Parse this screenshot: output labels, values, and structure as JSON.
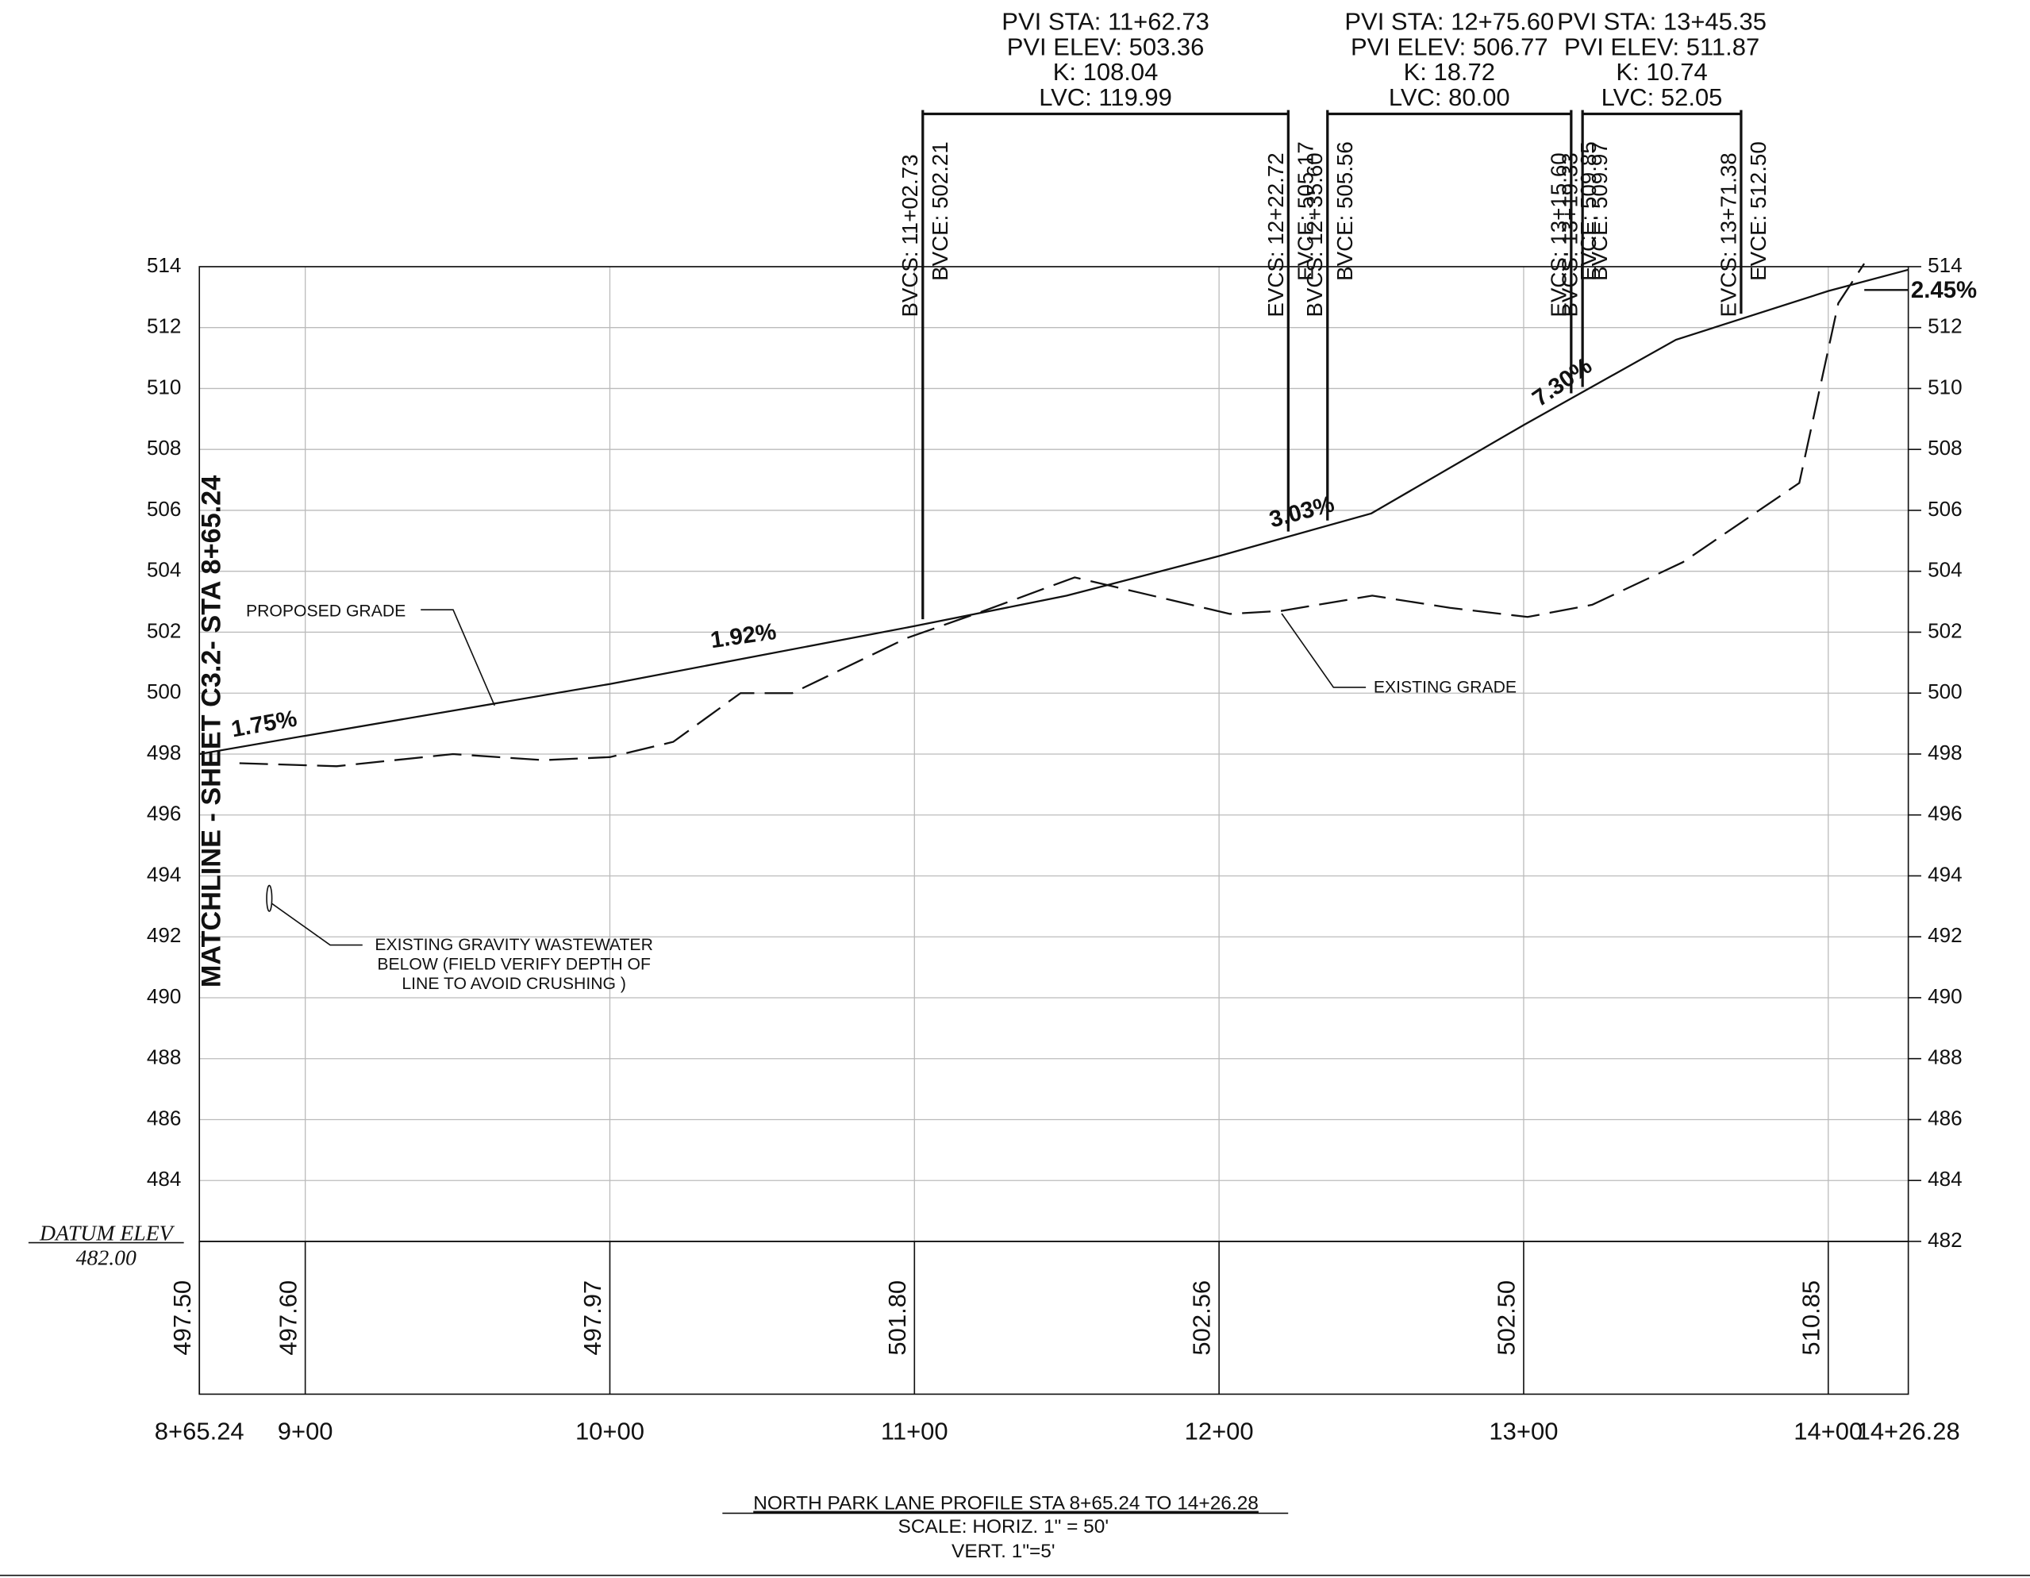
{
  "chart_data": {
    "type": "line",
    "title": "NORTH PARK LANE PROFILE STA 8+65.24 TO 14+26.28",
    "subtitle": [
      "SCALE: HORIZ. 1\" = 50'",
      "VERT. 1\"=5'"
    ],
    "matchline": "MATCHLINE - SHEET C3.2- STA 8+65.24",
    "datum": {
      "label": "DATUM  ELEV",
      "value": "482.00"
    },
    "xlim": [
      865.24,
      1426.28
    ],
    "xticks": [
      {
        "value": 865.24,
        "label": "8+65.24"
      },
      {
        "value": 900,
        "label": "9+00"
      },
      {
        "value": 1000,
        "label": "10+00"
      },
      {
        "value": 1100,
        "label": "11+00"
      },
      {
        "value": 1200,
        "label": "12+00"
      },
      {
        "value": 1300,
        "label": "13+00"
      },
      {
        "value": 1400,
        "label": "14+00"
      },
      {
        "value": 1426.28,
        "label": "14+26.28"
      }
    ],
    "ylim": [
      482,
      514
    ],
    "yticks": [
      482,
      484,
      486,
      488,
      490,
      492,
      494,
      496,
      498,
      500,
      502,
      504,
      506,
      508,
      510,
      512,
      514
    ],
    "grid": true,
    "series": [
      {
        "name": "PROPOSED GRADE",
        "color": "#111111",
        "dash": false,
        "x": [
          865.24,
          900,
          1000,
          1100,
          1150,
          1200,
          1250,
          1300,
          1350,
          1400,
          1426.28
        ],
        "values": [
          498.0,
          498.6,
          500.3,
          502.2,
          503.2,
          504.5,
          505.9,
          508.8,
          511.6,
          513.2,
          513.9
        ]
      },
      {
        "name": "EXISTING GRADE",
        "color": "#111111",
        "dash": true,
        "x": [
          878.4,
          910.3,
          948.5,
          978.3,
          1000,
          1020.8,
          1042.9,
          1059.9,
          1097.3,
          1122.8,
          1152.6,
          1173.8,
          1203.6,
          1220.5,
          1250.3,
          1275.8,
          1301.3,
          1322.5,
          1352.3,
          1390.5,
          1403.3,
          1411.8
        ],
        "values": [
          497.7,
          497.6,
          498.0,
          497.8,
          497.9,
          498.4,
          500.0,
          500.0,
          501.8,
          502.7,
          503.8,
          503.3,
          502.6,
          502.7,
          503.2,
          502.8,
          502.5,
          502.9,
          504.3,
          506.9,
          512.8,
          514.1
        ]
      }
    ],
    "grade_labels": [
      "1.75%",
      "1.92%",
      "3.03%",
      "7.30%",
      "2.45%"
    ],
    "annotations": [
      "PROPOSED GRADE",
      "EXISTING GRADE",
      "EXISTING GRAVITY WASTEWATER",
      "BELOW (FIELD VERIFY DEPTH OF",
      "LINE TO AVOID CRUSHING )"
    ],
    "vertical_curves": [
      {
        "pvi": [
          "PVI STA:  11+62.73",
          "PVI ELEV:  503.36",
          "K:  108.04",
          "LVC:  119.99"
        ],
        "bvc": {
          "x": 1102.73,
          "station": "BVCS:  11+02.73",
          "elev": "BVCE:  502.21"
        },
        "evc": {
          "x": 1222.72,
          "station": "EVCS:  12+22.72",
          "elev": "EVCE:  505.17"
        }
      },
      {
        "pvi": [
          "PVI STA:  12+75.60",
          "PVI ELEV:  506.77",
          "K:  18.72",
          "LVC:  80.00"
        ],
        "bvc": {
          "x": 1235.6,
          "station": "BVCS:  12+35.60",
          "elev": "BVCE:  505.56"
        },
        "evc": {
          "x": 1315.6,
          "station": "EVCS:  13+15.60",
          "elev": "EVCE:  509.85"
        }
      },
      {
        "pvi": [
          "PVI STA:  13+45.35",
          "PVI ELEV:  511.87",
          "K:  10.74",
          "LVC:  52.05"
        ],
        "bvc": {
          "x": 1319.33,
          "station": "BVCS:  13+19.33",
          "elev": "BVCE:  509.97"
        },
        "evc": {
          "x": 1371.38,
          "station": "EVCS:  13+71.38",
          "elev": "EVCE:  512.50"
        }
      }
    ],
    "elevation_row": {
      "x": [
        865.24,
        900,
        1000,
        1100,
        1200,
        1300,
        1400
      ],
      "labels": [
        "497.50",
        "497.60",
        "497.97",
        "501.80",
        "502.56",
        "502.50",
        "510.85"
      ]
    }
  }
}
